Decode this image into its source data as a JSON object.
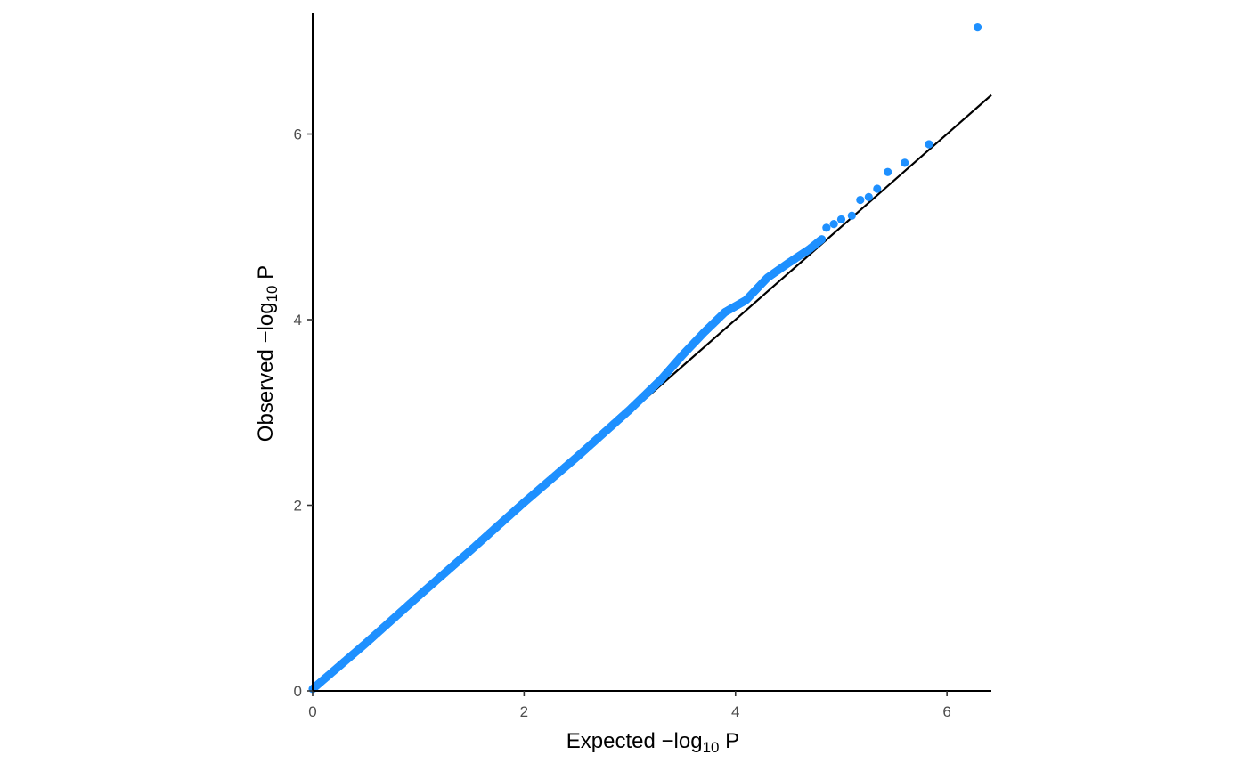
{
  "chart_data": {
    "type": "scatter",
    "xlabel": {
      "pre": "Expected −log",
      "sub": "10",
      "post": " P"
    },
    "ylabel": {
      "pre": "Observed −log",
      "sub": "10",
      "post": " P"
    },
    "xlim": [
      0,
      6.42
    ],
    "ylim": [
      0,
      7.3
    ],
    "xticks": [
      0,
      2,
      4,
      6
    ],
    "yticks": [
      0,
      2,
      4,
      6
    ],
    "grid": false,
    "reference_line": {
      "slope": 1,
      "intercept": 0
    },
    "point_color": "#1E90FF",
    "line_color": "#000000",
    "bulk_trend": [
      [
        0.0,
        0.02
      ],
      [
        0.5,
        0.51
      ],
      [
        1.0,
        1.02
      ],
      [
        1.5,
        1.52
      ],
      [
        2.0,
        2.03
      ],
      [
        2.5,
        2.52
      ],
      [
        3.0,
        3.03
      ],
      [
        3.3,
        3.36
      ],
      [
        3.5,
        3.62
      ],
      [
        3.7,
        3.86
      ],
      [
        3.9,
        4.08
      ],
      [
        4.1,
        4.21
      ],
      [
        4.3,
        4.45
      ],
      [
        4.5,
        4.61
      ],
      [
        4.7,
        4.76
      ],
      [
        4.82,
        4.87
      ]
    ],
    "outliers": [
      [
        4.86,
        4.99
      ],
      [
        4.93,
        5.03
      ],
      [
        5.0,
        5.08
      ],
      [
        5.1,
        5.12
      ],
      [
        5.18,
        5.29
      ],
      [
        5.26,
        5.32
      ],
      [
        5.34,
        5.41
      ],
      [
        5.44,
        5.59
      ],
      [
        5.6,
        5.69
      ],
      [
        5.83,
        5.89
      ],
      [
        6.29,
        7.15
      ]
    ]
  }
}
